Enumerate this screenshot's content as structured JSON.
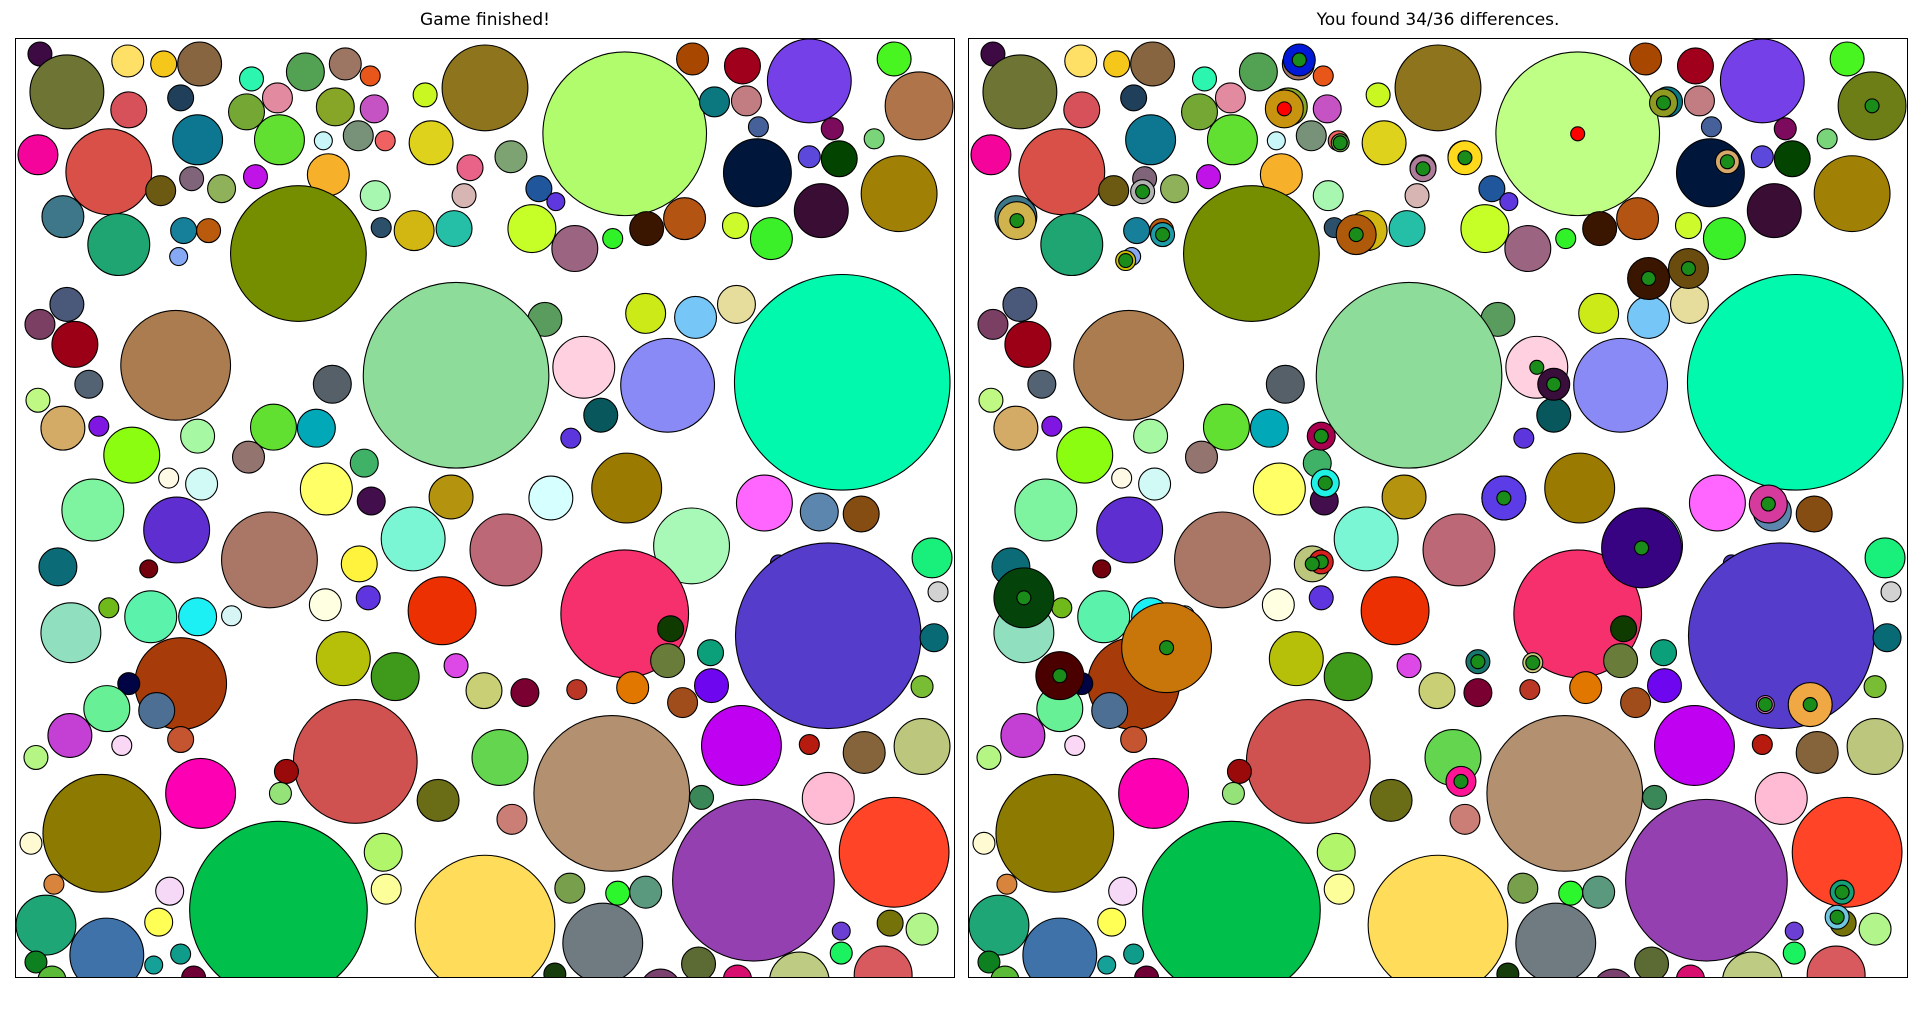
{
  "game": {
    "left_title": "Game finished!",
    "right_title": "You found 34/36 differences.",
    "found": 34,
    "total": 36
  },
  "marker_colors": {
    "found": "#1a8c1a",
    "missed": "#ff0000"
  },
  "circles": [
    [
      "#3d0a44",
      24,
      15,
      12
    ],
    [
      "#ffe066",
      112,
      22,
      16
    ],
    [
      "#f5c71a",
      148,
      25,
      13
    ],
    [
      "#876540",
      184,
      25,
      22
    ],
    [
      "#2cf5b0",
      236,
      40,
      12
    ],
    [
      "#53a153",
      290,
      33,
      19
    ],
    [
      "#9c7663",
      330,
      25,
      16
    ],
    [
      "#e8561a",
      355,
      37,
      10
    ],
    [
      "#a84800",
      678,
      20,
      16
    ],
    [
      "#a0001c",
      728,
      27,
      18
    ],
    [
      "#7540e8",
      795,
      42,
      42
    ],
    [
      "#49f521",
      880,
      20,
      17
    ],
    [
      "#6e7433",
      51,
      53,
      37
    ],
    [
      "#f7d1ab",
      12,
      130,
      0
    ],
    [
      "#d6515a",
      113,
      71,
      18
    ],
    [
      "#1f3f5a",
      165,
      59,
      13
    ],
    [
      "#e28aa0",
      262,
      59,
      15
    ],
    [
      "#74a733",
      231,
      73,
      18
    ],
    [
      "#87a628",
      320,
      68,
      19
    ],
    [
      "#c653c3",
      359,
      70,
      14
    ],
    [
      "#c9f721",
      410,
      56,
      12
    ],
    [
      "#8e751d",
      470,
      49,
      43
    ],
    [
      "#b0fc6c",
      610,
      95,
      82
    ],
    [
      "#0b7880",
      700,
      63,
      15
    ],
    [
      "#c27d83",
      732,
      62,
      15
    ],
    [
      "#b0744a",
      905,
      67,
      34
    ],
    [
      "#f5049c",
      22,
      116,
      20
    ],
    [
      "#d85048",
      93,
      133,
      43
    ],
    [
      "#0d7791",
      182,
      101,
      25
    ],
    [
      "#6c5a12",
      145,
      152,
      15
    ],
    [
      "#80657a",
      176,
      140,
      12
    ],
    [
      "#8fb159",
      206,
      150,
      14
    ],
    [
      "#62e031",
      264,
      101,
      25
    ],
    [
      "#c8f6f9",
      308,
      102,
      9
    ],
    [
      "#779278",
      343,
      97,
      15
    ],
    [
      "#e9fe29",
      380,
      82,
      0
    ],
    [
      "#f06262",
      370,
      102,
      10
    ],
    [
      "#dfd21c",
      416,
      104,
      22
    ],
    [
      "#e96287",
      455,
      129,
      13
    ],
    [
      "#7da373",
      496,
      118,
      16
    ],
    [
      "#46609a",
      744,
      88,
      10
    ],
    [
      "#00173b",
      743,
      134,
      34
    ],
    [
      "#5c49dc",
      795,
      118,
      11
    ],
    [
      "#7d0b5d",
      818,
      90,
      11
    ],
    [
      "#034400",
      825,
      120,
      18
    ],
    [
      "#a08005",
      885,
      155,
      38
    ],
    [
      "#7ad47a",
      860,
      100,
      10
    ],
    [
      "#41d099",
      866,
      110,
      0
    ],
    [
      "#3d7789",
      47,
      178,
      21
    ],
    [
      "#1fa571",
      103,
      206,
      31
    ],
    [
      "#bf13e8",
      240,
      138,
      12
    ],
    [
      "#f6b02a",
      313,
      136,
      21
    ],
    [
      "#2c4f6a",
      366,
      189,
      10
    ],
    [
      "#a7f7b1",
      360,
      157,
      15
    ],
    [
      "#d7b5b2",
      449,
      157,
      12
    ],
    [
      "#20569b",
      524,
      150,
      13
    ],
    [
      "#5e37de",
      541,
      163,
      9
    ],
    [
      "#3a0d35",
      807,
      172,
      27
    ],
    [
      "#16809b",
      168,
      192,
      13
    ],
    [
      "#ba5a0c",
      193,
      192,
      12
    ],
    [
      "#86a9f4",
      163,
      218,
      9
    ],
    [
      "#758e00",
      283,
      215,
      68
    ],
    [
      "#d2b611",
      399,
      192,
      20
    ],
    [
      "#24bfa6",
      439,
      190,
      18
    ],
    [
      "#c6fe28",
      517,
      190,
      24
    ],
    [
      "#9b6481",
      560,
      210,
      23
    ],
    [
      "#31f229",
      598,
      200,
      10
    ],
    [
      "#3a1600",
      632,
      190,
      17
    ],
    [
      "#b35413",
      670,
      180,
      21
    ],
    [
      "#ccfa2b",
      721,
      187,
      13
    ],
    [
      "#3bef29",
      757,
      200,
      21
    ],
    [
      "#00f9ac",
      828,
      344,
      108
    ],
    [
      "#e6dc9c",
      722,
      266,
      19
    ],
    [
      "#76c6f8",
      681,
      279,
      21
    ],
    [
      "#4a597a",
      51,
      266,
      17
    ],
    [
      "#7b3f64",
      24,
      286,
      15
    ],
    [
      "#9b0017",
      59,
      306,
      23
    ],
    [
      "#aa7c4f",
      160,
      327,
      55
    ],
    [
      "#ccea18",
      631,
      275,
      20
    ],
    [
      "#5a9c5e",
      530,
      281,
      17
    ],
    [
      "#8edc99",
      441,
      337,
      93
    ],
    [
      "#000000",
      0,
      0,
      0
    ],
    [
      "#ffd0e0",
      569,
      329,
      31
    ],
    [
      "#8a8af7",
      653,
      347,
      47
    ],
    [
      "#556068",
      317,
      346,
      19
    ],
    [
      "#c0f884",
      22,
      362,
      12
    ],
    [
      "#536373",
      73,
      346,
      14
    ],
    [
      "#d4ab66",
      47,
      390,
      22
    ],
    [
      "#7f16e2",
      83,
      388,
      10
    ],
    [
      "#a6f8a2",
      182,
      398,
      17
    ],
    [
      "#8afd11",
      116,
      417,
      28
    ],
    [
      "#62e031",
      258,
      389,
      23
    ],
    [
      "#00a8b8",
      301,
      390,
      19
    ],
    [
      "#08575d",
      586,
      377,
      17
    ],
    [
      "#5d35dd",
      556,
      400,
      10
    ],
    [
      "#94746e",
      233,
      419,
      16
    ],
    [
      "#fffae5",
      153,
      440,
      10
    ],
    [
      "#d1f9f5",
      186,
      446,
      16
    ],
    [
      "#ffff66",
      311,
      451,
      26
    ],
    [
      "#3fb268",
      349,
      425,
      14
    ],
    [
      "#420e4b",
      356,
      463,
      14
    ],
    [
      "#b4940f",
      436,
      459,
      22
    ],
    [
      "#d6ffff",
      536,
      460,
      22
    ],
    [
      "#9a7a00",
      612,
      450,
      35
    ],
    [
      "#ff66ff",
      750,
      465,
      28
    ],
    [
      "#5c86ae",
      805,
      474,
      19
    ],
    [
      "#864d13",
      847,
      476,
      18
    ],
    [
      "#7ef4a0",
      77,
      472,
      31
    ],
    [
      "#5f2ed1",
      161,
      492,
      33
    ],
    [
      "#aa7766",
      254,
      522,
      48
    ],
    [
      "#7af6d5",
      398,
      501,
      32
    ],
    [
      "#bc6876",
      491,
      512,
      36
    ],
    [
      "#a8f9b8",
      677,
      508,
      38
    ],
    [
      "#5433c7",
      764,
      525,
      8
    ],
    [
      "#0b6c77",
      42,
      529,
      19
    ],
    [
      "#72000d",
      133,
      531,
      9
    ],
    [
      "#fff33d",
      344,
      526,
      18
    ],
    [
      "#18f07b",
      918,
      520,
      20
    ],
    [
      "#f6306d",
      610,
      576,
      64
    ],
    [
      "#563ccb",
      814,
      598,
      93
    ],
    [
      "#ed3002",
      427,
      573,
      34
    ],
    [
      "#d2d2d2",
      924,
      554,
      10
    ],
    [
      "#90e0c0",
      55,
      595,
      30
    ],
    [
      "#70b91a",
      93,
      570,
      10
    ],
    [
      "#5bf2ab",
      135,
      579,
      26
    ],
    [
      "#1df0f5",
      182,
      579,
      19
    ],
    [
      "#d7f5f5",
      216,
      578,
      10
    ],
    [
      "#ffffe1",
      310,
      567,
      16
    ],
    [
      "#5f35df",
      353,
      560,
      12
    ],
    [
      "#0f3a00",
      656,
      591,
      13
    ],
    [
      "#076a75",
      920,
      600,
      14
    ],
    [
      "#a73b09",
      165,
      646,
      46
    ],
    [
      "#b6c009",
      328,
      621,
      27
    ],
    [
      "#3f9a1b",
      380,
      639,
      24
    ],
    [
      "#dd49e6",
      441,
      628,
      12
    ],
    [
      "#0ba07a",
      696,
      615,
      13
    ],
    [
      "#6a7c3a",
      653,
      623,
      17
    ],
    [
      "#000444",
      113,
      646,
      11
    ],
    [
      "#68f097",
      91,
      671,
      23
    ],
    [
      "#4d6f94",
      141,
      673,
      18
    ],
    [
      "#c8cf74",
      469,
      653,
      18
    ],
    [
      "#7a0031",
      510,
      655,
      14
    ],
    [
      "#ba3625",
      562,
      652,
      10
    ],
    [
      "#e27700",
      618,
      650,
      16
    ],
    [
      "#6f06f0",
      697,
      648,
      17
    ],
    [
      "#a04d1b",
      668,
      665,
      15
    ],
    [
      "#78bd34",
      908,
      649,
      11
    ],
    [
      "#c43fd4",
      54,
      698,
      22
    ],
    [
      "#f9d7f5",
      106,
      708,
      10
    ],
    [
      "#c55431",
      165,
      702,
      13
    ],
    [
      "#cf5251",
      340,
      724,
      62
    ],
    [
      "#64d54f",
      485,
      720,
      28
    ],
    [
      "#b29070",
      597,
      756,
      78
    ],
    [
      "#c000f0",
      727,
      708,
      40
    ],
    [
      "#b71a0e",
      795,
      707,
      10
    ],
    [
      "#85643b",
      850,
      715,
      21
    ],
    [
      "#bcc67d",
      908,
      709,
      28
    ],
    [
      "#b4f584",
      20,
      720,
      12
    ],
    [
      "#fe00b4",
      185,
      756,
      35
    ],
    [
      "#9a0a0a",
      271,
      734,
      12
    ],
    [
      "#95e378",
      265,
      756,
      11
    ],
    [
      "#6b6c16",
      423,
      763,
      21
    ],
    [
      "#ca7e76",
      497,
      782,
      15
    ],
    [
      "#3a8757",
      687,
      760,
      12
    ],
    [
      "#ffbbd4",
      814,
      761,
      26
    ],
    [
      "#8d7a00",
      86,
      796,
      59
    ],
    [
      "#ff4427",
      880,
      815,
      55
    ],
    [
      "#fffad2",
      15,
      806,
      11
    ],
    [
      "#b1f56a",
      368,
      815,
      19
    ],
    [
      "#00bf4b",
      263,
      873,
      89
    ],
    [
      "#fcff99",
      371,
      852,
      15
    ],
    [
      "#ffdd5a",
      470,
      888,
      70
    ],
    [
      "#78a04c",
      555,
      851,
      15
    ],
    [
      "#2bf72c",
      603,
      856,
      12
    ],
    [
      "#5a997e",
      631,
      855,
      16
    ],
    [
      "#9440b0",
      739,
      843,
      81
    ],
    [
      "#f6d9f7",
      154,
      854,
      14
    ],
    [
      "#d8843d",
      38,
      847,
      10
    ],
    [
      "#1ea676",
      30,
      888,
      30
    ],
    [
      "#3e72a8",
      91,
      918,
      37
    ],
    [
      "#ffff55",
      143,
      885,
      14
    ],
    [
      "#b2f58a",
      908,
      892,
      16
    ],
    [
      "#6f7b80",
      588,
      906,
      40
    ],
    [
      "#747208",
      876,
      886,
      13
    ],
    [
      "#6c3fd4",
      827,
      894,
      9
    ],
    [
      "#15a098",
      138,
      928,
      9
    ],
    [
      "#0f9c8a",
      165,
      917,
      10
    ],
    [
      "#0d8020",
      20,
      925,
      11
    ],
    [
      "#5bba38",
      36,
      943,
      14
    ],
    [
      "#6f0035",
      178,
      941,
      12
    ],
    [
      "#10368e",
      108,
      952,
      11
    ],
    [
      "#0090e8",
      164,
      955,
      13
    ],
    [
      "#ba8090",
      200,
      956,
      10
    ],
    [
      "#163d0b",
      540,
      937,
      11
    ],
    [
      "#7b416f",
      646,
      952,
      20
    ],
    [
      "#5c6a33",
      684,
      927,
      17
    ],
    [
      "#d80f6e",
      723,
      942,
      14
    ],
    [
      "#1bf260",
      827,
      916,
      11
    ],
    [
      "#bdcc82",
      785,
      945,
      30
    ],
    [
      "#d85a5e",
      869,
      938,
      29
    ],
    [
      "#24b95d",
      827,
      956,
      9
    ],
    [
      "#a9f581",
      838,
      953,
      0
    ],
    [
      "#006614",
      715,
      966,
      0
    ],
    [
      "#32960b",
      717,
      969,
      10
    ]
  ],
  "differences": [
    {
      "circle": 82,
      "color": "#ffffff",
      "radius": 0,
      "marker": "found"
    },
    {
      "circle": 23,
      "color": "#ffffff",
      "radius": 0,
      "marker": "found"
    },
    {
      "add": [
        "#0019d6",
        331,
        21,
        16
      ],
      "marker": "found"
    },
    {
      "add": [
        "#c8940f",
        316,
        70,
        19
      ],
      "marker": "missed"
    },
    {
      "add": [
        "#6da34e",
        372,
        104,
        9
      ],
      "marker": "found"
    },
    {
      "circle": 22,
      "color": "#bfff85",
      "radius": 0,
      "marker": "missed"
    },
    {
      "add": [
        "#8f9a22",
        696,
        64,
        14
      ],
      "marker": "found"
    },
    {
      "circle": 25,
      "color": "#6e7e17",
      "radius": 0,
      "marker": "found"
    },
    {
      "add": [
        "#d6a86a",
        760,
        123,
        12
      ],
      "marker": "found"
    },
    {
      "add": [
        "#d1b34e",
        48,
        182,
        19
      ],
      "marker": "found"
    },
    {
      "add": [
        "#b2b2b2",
        174,
        153,
        12
      ],
      "marker": "found"
    },
    {
      "add": [
        "#1f9aa7",
        194,
        196,
        12
      ],
      "marker": "found"
    },
    {
      "add": [
        "#ccc200",
        157,
        222,
        10
      ],
      "marker": "found"
    },
    {
      "add": [
        "#ae5a0a",
        388,
        196,
        20
      ],
      "marker": "found"
    },
    {
      "add": [
        "#ac7c99",
        455,
        130,
        13
      ],
      "marker": "found"
    },
    {
      "add": [
        "#ffd91b",
        497,
        119,
        17
      ],
      "marker": "found"
    },
    {
      "add": [
        "#3a1600",
        681,
        240,
        21
      ],
      "marker": "found"
    },
    {
      "add": [
        "#6b4c0f",
        721,
        230,
        20
      ],
      "marker": "found"
    },
    {
      "add": [
        "#3a0e3a",
        586,
        346,
        16
      ],
      "marker": "found"
    },
    {
      "add": [
        "#a8004e",
        353,
        398,
        14
      ],
      "marker": "found"
    },
    {
      "add": [
        "#1ff1e5",
        357,
        445,
        14
      ],
      "marker": "found"
    },
    {
      "add": [
        "#5b3ce7",
        536,
        460,
        22
      ],
      "marker": "found"
    },
    {
      "add": [
        "#d63a9c",
        801,
        466,
        19
      ],
      "marker": "found"
    },
    {
      "add": [
        "#380382",
        674,
        510,
        40
      ],
      "marker": "found"
    },
    {
      "add": [
        "#d7201e",
        353,
        524,
        12
      ],
      "marker": "found"
    },
    {
      "circle": 116,
      "color": "#bcc67d",
      "radius": 0,
      "marker": "found"
    },
    {
      "add": [
        "#04440b",
        55,
        560,
        30
      ],
      "marker": "found"
    },
    {
      "add": [
        "#c8750a",
        198,
        610,
        45
      ],
      "marker": "found"
    },
    {
      "add": [
        "#4b0000",
        91,
        638,
        24
      ],
      "marker": "found"
    },
    {
      "add": [
        "#17776e",
        510,
        624,
        12
      ],
      "marker": "found"
    },
    {
      "add": [
        "#c9c980",
        565,
        625,
        10
      ],
      "marker": "found"
    },
    {
      "add": [
        "#d67bc6",
        798,
        667,
        9
      ],
      "marker": "found"
    },
    {
      "add": [
        "#f0a844",
        843,
        667,
        22
      ],
      "marker": "found"
    },
    {
      "add": [
        "#fe1495",
        493,
        744,
        15
      ],
      "marker": "found"
    },
    {
      "add": [
        "#15a078",
        875,
        855,
        12
      ],
      "marker": "found"
    },
    {
      "add": [
        "#6fc6df",
        870,
        880,
        12
      ],
      "marker": "found"
    }
  ]
}
